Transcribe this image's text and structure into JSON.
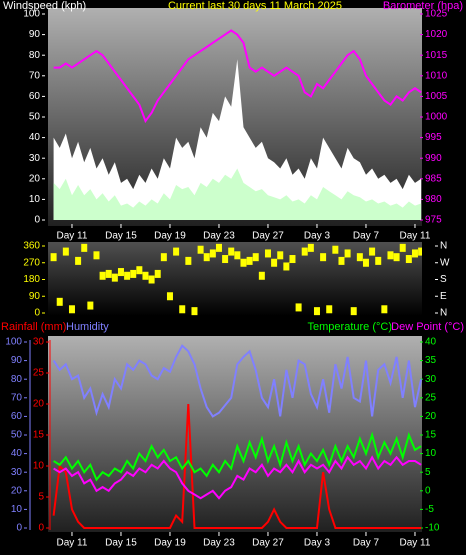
{
  "chart_data": [
    {
      "type": "line",
      "title": "Current last 30 days 11 March 2025",
      "ylabel": "Windspeed (kph)",
      "xlim": [
        0,
        60
      ],
      "xticks": [
        {
          "value": 3,
          "label": "Day 11"
        },
        {
          "value": 11,
          "label": "Day 15"
        },
        {
          "value": 19,
          "label": "Day 19"
        },
        {
          "value": 27,
          "label": "Day 23"
        },
        {
          "value": 35,
          "label": "Day 27"
        },
        {
          "value": 43,
          "label": "Day 3"
        },
        {
          "value": 51,
          "label": "Day 7"
        },
        {
          "value": 59,
          "label": "Day 11"
        }
      ],
      "ylim": [
        0,
        100
      ],
      "yticks": [
        0,
        10,
        20,
        30,
        40,
        50,
        60,
        70,
        80,
        90,
        100
      ],
      "y2lim": [
        975,
        1025
      ],
      "y2ticks": [
        975,
        980,
        985,
        990,
        995,
        1000,
        1005,
        1010,
        1015,
        1020,
        1025
      ],
      "series": [
        {
          "color": "#ffffff",
          "style": "area",
          "values": [
            40,
            35,
            42,
            30,
            38,
            28,
            35,
            25,
            30,
            22,
            28,
            18,
            20,
            15,
            22,
            18,
            25,
            20,
            30,
            25,
            40,
            35,
            38,
            30,
            45,
            40,
            52,
            48,
            60,
            55,
            78,
            45,
            40,
            35,
            38,
            30,
            28,
            25,
            30,
            22,
            25,
            20,
            30,
            25,
            40,
            35,
            30,
            25,
            35,
            30,
            28,
            22,
            25,
            20,
            22,
            18,
            20,
            15,
            22,
            18,
            20
          ]
        },
        {
          "color": "#ccffcc",
          "style": "area",
          "values": [
            18,
            15,
            20,
            12,
            17,
            12,
            15,
            10,
            13,
            9,
            12,
            7,
            8,
            6,
            9,
            7,
            10,
            8,
            13,
            10,
            17,
            15,
            16,
            12,
            18,
            16,
            20,
            18,
            22,
            20,
            25,
            18,
            16,
            14,
            15,
            12,
            11,
            10,
            12,
            9,
            10,
            8,
            12,
            10,
            16,
            14,
            12,
            10,
            14,
            12,
            11,
            9,
            10,
            8,
            9,
            7,
            8,
            6,
            9,
            7,
            8
          ]
        },
        {
          "name": "Barometer (hpa)",
          "color": "#ff00ff",
          "axis": "y2",
          "values": [
            1012,
            1012,
            1013,
            1012,
            1013,
            1014,
            1015,
            1016,
            1015,
            1013,
            1011,
            1009,
            1007,
            1005,
            1003,
            999,
            1001,
            1004,
            1006,
            1008,
            1010,
            1012,
            1014,
            1015,
            1016,
            1017,
            1018,
            1019,
            1020,
            1021,
            1020,
            1018,
            1012,
            1011,
            1012,
            1011,
            1010,
            1011,
            1012,
            1011,
            1010,
            1006,
            1005,
            1008,
            1007,
            1009,
            1011,
            1013,
            1015,
            1016,
            1014,
            1010,
            1008,
            1006,
            1004,
            1003,
            1005,
            1004,
            1006,
            1007,
            1006
          ]
        }
      ]
    },
    {
      "type": "scatter",
      "xlim": [
        0,
        60
      ],
      "ylim": [
        0,
        360
      ],
      "yticks": [
        0,
        90,
        180,
        270,
        360
      ],
      "y2ticks": [
        {
          "value": 360,
          "label": "N"
        },
        {
          "value": 270,
          "label": "W"
        },
        {
          "value": 180,
          "label": "S"
        },
        {
          "value": 90,
          "label": "E"
        },
        {
          "value": 0,
          "label": "N"
        }
      ],
      "series": [
        {
          "color": "#ffff00",
          "values": [
            300,
            60,
            330,
            20,
            280,
            350,
            40,
            310,
            200,
            210,
            190,
            220,
            200,
            210,
            230,
            200,
            180,
            210,
            300,
            90,
            330,
            20,
            280,
            10,
            340,
            300,
            320,
            350,
            290,
            330,
            310,
            270,
            280,
            300,
            200,
            320,
            270,
            310,
            250,
            290,
            30,
            330,
            350,
            10,
            300,
            20,
            340,
            280,
            320,
            10,
            300,
            270,
            330,
            280,
            20,
            310,
            300,
            350,
            290,
            320,
            330
          ]
        }
      ]
    },
    {
      "type": "line",
      "xlim": [
        0,
        60
      ],
      "xticks": [
        {
          "value": 3,
          "label": "Day 11"
        },
        {
          "value": 11,
          "label": "Day 15"
        },
        {
          "value": 19,
          "label": "Day 19"
        },
        {
          "value": 27,
          "label": "Day 23"
        },
        {
          "value": 35,
          "label": "Day 27"
        },
        {
          "value": 43,
          "label": "Day 3"
        },
        {
          "value": 51,
          "label": "Day 7"
        },
        {
          "value": 59,
          "label": "Day 11"
        }
      ],
      "ylim": [
        0,
        100
      ],
      "yticks": [
        0,
        10,
        20,
        30,
        40,
        50,
        60,
        70,
        80,
        90,
        100
      ],
      "y3lim": [
        0,
        30
      ],
      "y3ticks": [
        0,
        5,
        10,
        15,
        20,
        25,
        30
      ],
      "y2lim": [
        -10,
        40
      ],
      "y2ticks": [
        -10,
        -5,
        0,
        5,
        10,
        15,
        20,
        25,
        30,
        35,
        40
      ],
      "series": [
        {
          "name": "Rainfall (mm)",
          "color": "#ff0000",
          "axis": "y3",
          "values": [
            2,
            10,
            9,
            3,
            1,
            0,
            0,
            0,
            0,
            0,
            0,
            0,
            0,
            0,
            0,
            0,
            0,
            0,
            0,
            0,
            2,
            1,
            20,
            0,
            0,
            0,
            0,
            0,
            0,
            0,
            0,
            0,
            0,
            0,
            0,
            1,
            3,
            1,
            0,
            0,
            0,
            0,
            0,
            0,
            9,
            3,
            0,
            0,
            0,
            0,
            0,
            0,
            0,
            0,
            0,
            0,
            0,
            0,
            0,
            0,
            0
          ]
        },
        {
          "name": "Humidity",
          "color": "#8080ff",
          "values": [
            90,
            85,
            88,
            80,
            82,
            70,
            75,
            62,
            72,
            65,
            80,
            75,
            88,
            85,
            90,
            88,
            82,
            80,
            86,
            84,
            92,
            98,
            95,
            88,
            75,
            65,
            60,
            62,
            66,
            70,
            88,
            92,
            95,
            85,
            70,
            65,
            80,
            60,
            85,
            70,
            90,
            88,
            72,
            65,
            80,
            62,
            88,
            75,
            92,
            70,
            68,
            90,
            60,
            85,
            88,
            78,
            92,
            70,
            90,
            65,
            80
          ]
        },
        {
          "name": "Temperature (°C)",
          "color": "#00ff00",
          "axis": "y2",
          "values": [
            8,
            7,
            9,
            6,
            8,
            5,
            7,
            3,
            5,
            4,
            6,
            5,
            8,
            6,
            10,
            8,
            12,
            9,
            11,
            8,
            9,
            6,
            8,
            5,
            6,
            4,
            7,
            5,
            8,
            6,
            12,
            8,
            13,
            9,
            14,
            8,
            12,
            7,
            13,
            8,
            12,
            7,
            10,
            8,
            11,
            7,
            12,
            8,
            12,
            9,
            14,
            10,
            15,
            9,
            13,
            10,
            14,
            9,
            15,
            11,
            12
          ]
        },
        {
          "name": "Dew Point (°C)",
          "color": "#ff00ff",
          "axis": "y2",
          "values": [
            6,
            5,
            6,
            4,
            5,
            2,
            3,
            0,
            1,
            0,
            2,
            3,
            5,
            4,
            6,
            5,
            7,
            6,
            8,
            6,
            5,
            2,
            0,
            -1,
            -2,
            -1,
            0,
            -2,
            0,
            1,
            4,
            3,
            6,
            5,
            7,
            4,
            6,
            5,
            7,
            5,
            8,
            5,
            7,
            6,
            7,
            5,
            8,
            6,
            9,
            7,
            8,
            6,
            9,
            6,
            8,
            7,
            9,
            7,
            8,
            8,
            7
          ]
        }
      ]
    }
  ]
}
